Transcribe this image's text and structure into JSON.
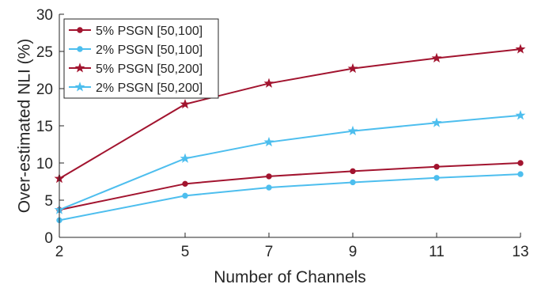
{
  "chart_data": {
    "type": "line",
    "title": "",
    "xlabel": "Number of Channels",
    "ylabel": "Over-estimated NLI (%)",
    "x": [
      2,
      5,
      7,
      9,
      11,
      13
    ],
    "xticks": [
      "2",
      "5",
      "7",
      "9",
      "11",
      "13"
    ],
    "yticks": [
      "0",
      "5",
      "10",
      "15",
      "20",
      "25",
      "30"
    ],
    "xlim": [
      2,
      13
    ],
    "ylim": [
      0,
      30
    ],
    "grid": false,
    "legend_position": "top-left",
    "series": [
      {
        "name": "5% PSGN [50,100]",
        "color": "#A2142F",
        "marker": "circle",
        "values": [
          3.7,
          7.2,
          8.2,
          8.9,
          9.5,
          10.0
        ]
      },
      {
        "name": "2% PSGN [50,100]",
        "color": "#4DBEEE",
        "marker": "circle",
        "values": [
          2.3,
          5.6,
          6.7,
          7.4,
          8.0,
          8.5
        ]
      },
      {
        "name": "5% PSGN [50,200]",
        "color": "#A2142F",
        "marker": "star",
        "values": [
          7.9,
          17.9,
          20.7,
          22.7,
          24.1,
          25.3
        ]
      },
      {
        "name": "2% PSGN [50,200]",
        "color": "#4DBEEE",
        "marker": "star",
        "values": [
          3.7,
          10.6,
          12.8,
          14.3,
          15.4,
          16.4
        ]
      }
    ]
  }
}
